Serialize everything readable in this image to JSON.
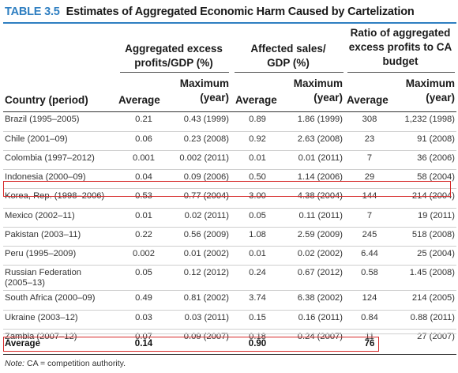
{
  "table": {
    "number": "TABLE 3.5",
    "title": "Estimates of Aggregated Economic Harm Caused by Cartelization",
    "group_headers": [
      {
        "line1": "Aggregated excess",
        "line2": "profits/GDP (%)"
      },
      {
        "line1": "Affected sales/",
        "line2": "GDP (%)"
      },
      {
        "line1": "Ratio of aggregated",
        "line2": "excess profits to CA",
        "line3": "budget"
      }
    ],
    "country_header": "Country (period)",
    "sub_headers": {
      "average": "Average",
      "maximum_line1": "Maximum",
      "maximum_line2": "(year)"
    },
    "rows": [
      {
        "country": "Brazil (1995–2005)",
        "p_avg": "0.21",
        "p_max": "0.43 (1999)",
        "s_avg": "0.89",
        "s_max": "1.86 (1999)",
        "r_avg": "308",
        "r_max": "1,232 (1998)"
      },
      {
        "country": "Chile (2001–09)",
        "p_avg": "0.06",
        "p_max": "0.23 (2008)",
        "s_avg": "0.92",
        "s_max": "2.63 (2008)",
        "r_avg": "23",
        "r_max": "91 (2008)"
      },
      {
        "country": "Colombia (1997–2012)",
        "p_avg": "0.001",
        "p_max": "0.002 (2011)",
        "s_avg": "0.01",
        "s_max": "0.01 (2011)",
        "r_avg": "7",
        "r_max": "36 (2006)"
      },
      {
        "country": "Indonesia (2000–09)",
        "p_avg": "0.04",
        "p_max": "0.09 (2006)",
        "s_avg": "0.50",
        "s_max": "1.14 (2006)",
        "r_avg": "29",
        "r_max": "58 (2004)"
      },
      {
        "country": "Korea, Rep. (1998–2006)",
        "p_avg": "0.53",
        "p_max": "0.77 (2004)",
        "s_avg": "3.00",
        "s_max": "4.38 (2004)",
        "r_avg": "144",
        "r_max": "214 (2004)"
      },
      {
        "country": "Mexico (2002–11)",
        "p_avg": "0.01",
        "p_max": "0.02 (2011)",
        "s_avg": "0.05",
        "s_max": "0.11 (2011)",
        "r_avg": "7",
        "r_max": "19 (2011)"
      },
      {
        "country": "Pakistan (2003–11)",
        "p_avg": "0.22",
        "p_max": "0.56 (2009)",
        "s_avg": "1.08",
        "s_max": "2.59 (2009)",
        "r_avg": "245",
        "r_max": "518 (2008)"
      },
      {
        "country": "Peru (1995–2009)",
        "p_avg": "0.002",
        "p_max": "0.01 (2002)",
        "s_avg": "0.01",
        "s_max": "0.02 (2002)",
        "r_avg": "6.44",
        "r_max": "25 (2004)"
      },
      {
        "country": "Russian Federation",
        "country2": "(2005–13)",
        "p_avg": "0.05",
        "p_max": "0.12 (2012)",
        "s_avg": "0.24",
        "s_max": "0.67 (2012)",
        "r_avg": "0.58",
        "r_max": "1.45 (2008)"
      },
      {
        "country": "South Africa (2000–09)",
        "p_avg": "0.49",
        "p_max": "0.81 (2002)",
        "s_avg": "3.74",
        "s_max": "6.38 (2002)",
        "r_avg": "124",
        "r_max": "214 (2005)"
      },
      {
        "country": "Ukraine (2003–12)",
        "p_avg": "0.03",
        "p_max": "0.03 (2011)",
        "s_avg": "0.15",
        "s_max": "0.16 (2011)",
        "r_avg": "0.84",
        "r_max": "0.88 (2011)"
      },
      {
        "country": "Zambia (2007–12)",
        "p_avg": "0.07",
        "p_max": "0.09 (2007)",
        "s_avg": "0.18",
        "s_max": "0.24 (2007)",
        "r_avg": "11",
        "r_max": "27 (2007)"
      }
    ],
    "average_row": {
      "label": "Average",
      "p_avg": "0.14",
      "s_avg": "0.90",
      "r_avg": "76"
    },
    "note_label": "Note:",
    "note_text": " CA = competition authority.",
    "highlight_color": "#d62a2a",
    "accent_color": "#2f7fc1"
  }
}
